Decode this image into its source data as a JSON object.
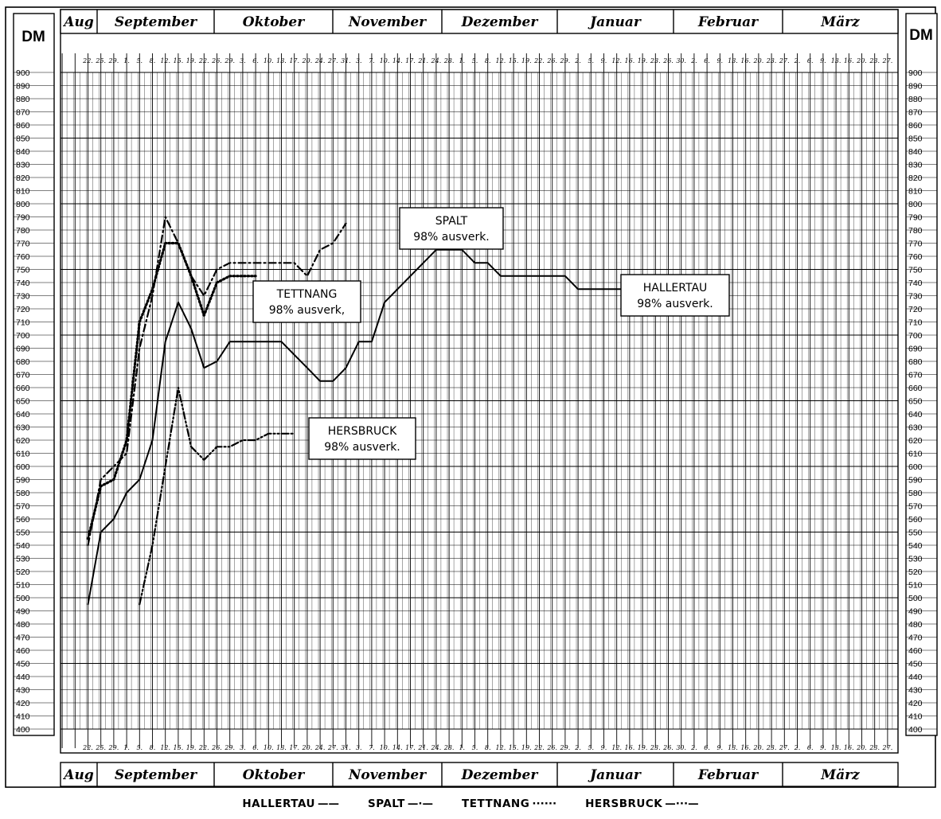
{
  "chart_data": {
    "type": "line",
    "y_unit_label": "DM",
    "ylim": [
      400,
      900
    ],
    "y_ticks": [
      900,
      890,
      880,
      870,
      860,
      850,
      840,
      830,
      820,
      810,
      800,
      790,
      780,
      770,
      760,
      750,
      740,
      730,
      720,
      710,
      700,
      690,
      680,
      670,
      660,
      650,
      640,
      630,
      620,
      610,
      600,
      590,
      580,
      570,
      560,
      550,
      540,
      530,
      520,
      510,
      500,
      490,
      480,
      470,
      460,
      450,
      440,
      430,
      420,
      410,
      400
    ],
    "months": [
      "Aug",
      "September",
      "Oktober",
      "November",
      "Dezember",
      "Januar",
      "Februar",
      "März"
    ],
    "date_ticks_top": [
      "22.",
      "25.",
      "29.",
      "1.",
      "5.",
      "8.",
      "12.",
      "15.",
      "19.",
      "22.",
      "26.",
      "29.",
      "3.",
      "6.",
      "10.",
      "13.",
      "17.",
      "20.",
      "24.",
      "27.",
      "31.",
      "3.",
      "7.",
      "10.",
      "14.",
      "17.",
      "21.",
      "24.",
      "28.",
      "1.",
      "5.",
      "8.",
      "12.",
      "15.",
      "19.",
      "22.",
      "26.",
      "29.",
      "2.",
      "5.",
      "9.",
      "12.",
      "16.",
      "19.",
      "23.",
      "26.",
      "30.",
      "2.",
      "6.",
      "9.",
      "13.",
      "16.",
      "20.",
      "23.",
      "27.",
      "2.",
      "6.",
      "9.",
      "13.",
      "16.",
      "20.",
      "23.",
      "27."
    ],
    "date_ticks_bottom": [
      "22.",
      "25.",
      "29.",
      "1.",
      "5.",
      "8.",
      "12.",
      "15.",
      "19.",
      "22.",
      "26.",
      "29.",
      "3.",
      "6.",
      "10.",
      "13.",
      "17.",
      "20.",
      "24.",
      "27.",
      "31.",
      "3.",
      "7.",
      "10.",
      "14.",
      "17.",
      "21.",
      "24.",
      "28.",
      "1.",
      "5.",
      "8.",
      "12.",
      "15.",
      "19.",
      "22.",
      "26.",
      "29.",
      "2.",
      "5.",
      "9.",
      "12.",
      "16.",
      "19.",
      "23.",
      "26.",
      "30.",
      "2.",
      "6.",
      "9.",
      "13.",
      "16.",
      "20.",
      "23.",
      "27.",
      "2.",
      "6.",
      "9.",
      "13.",
      "16.",
      "20.",
      "23.",
      "27."
    ],
    "x": [
      "22. Aug",
      "25. Aug",
      "29. Aug",
      "1. Sep",
      "5. Sep",
      "8. Sep",
      "12. Sep",
      "15. Sep",
      "19. Sep",
      "22. Sep",
      "26. Sep",
      "29. Sep",
      "3. Okt",
      "6. Okt",
      "10. Okt",
      "13. Okt",
      "17. Okt",
      "20. Okt",
      "24. Okt",
      "27. Okt",
      "31. Okt",
      "3. Nov",
      "7. Nov",
      "10. Nov",
      "14. Nov",
      "17. Nov",
      "21. Nov",
      "24. Nov",
      "28. Nov",
      "1. Dez",
      "5. Dez",
      "8. Dez",
      "12. Dez",
      "15. Dez",
      "19. Dez",
      "22. Dez",
      "26. Dez",
      "29. Dez",
      "2. Jan",
      "5. Jan",
      "9. Jan",
      "12. Jan",
      "16. Jan",
      "19. Jan",
      "23. Jan",
      "26. Jan",
      "30. Jan"
    ],
    "series": [
      {
        "name": "HALLERTAU",
        "style": "solid",
        "points": [
          [
            "22. Aug",
            495
          ],
          [
            "25. Aug",
            550
          ],
          [
            "29. Aug",
            560
          ],
          [
            "1. Sep",
            580
          ],
          [
            "5. Sep",
            590
          ],
          [
            "8. Sep",
            620
          ],
          [
            "12. Sep",
            695
          ],
          [
            "15. Sep",
            725
          ],
          [
            "19. Sep",
            705
          ],
          [
            "22. Sep",
            675
          ],
          [
            "26. Sep",
            680
          ],
          [
            "29. Sep",
            695
          ],
          [
            "3. Okt",
            695
          ],
          [
            "6. Okt",
            695
          ],
          [
            "10. Okt",
            695
          ],
          [
            "13. Okt",
            695
          ],
          [
            "17. Okt",
            685
          ],
          [
            "20. Okt",
            675
          ],
          [
            "24. Okt",
            665
          ],
          [
            "27. Okt",
            665
          ],
          [
            "31. Okt",
            675
          ],
          [
            "3. Nov",
            695
          ],
          [
            "7. Nov",
            695
          ],
          [
            "10. Nov",
            725
          ],
          [
            "14. Nov",
            735
          ],
          [
            "17. Nov",
            745
          ],
          [
            "21. Nov",
            755
          ],
          [
            "24. Nov",
            765
          ],
          [
            "28. Nov",
            765
          ],
          [
            "1. Dez",
            765
          ],
          [
            "5. Dez",
            755
          ],
          [
            "8. Dez",
            755
          ],
          [
            "12. Dez",
            745
          ],
          [
            "15. Dez",
            745
          ],
          [
            "19. Dez",
            745
          ],
          [
            "22. Dez",
            745
          ],
          [
            "26. Dez",
            745
          ],
          [
            "29. Dez",
            745
          ],
          [
            "2. Jan",
            735
          ],
          [
            "5. Jan",
            735
          ],
          [
            "9. Jan",
            735
          ],
          [
            "12. Jan",
            735
          ],
          [
            "16. Jan",
            735
          ],
          [
            "19. Jan",
            735
          ],
          [
            "23. Jan",
            735
          ],
          [
            "26. Jan",
            735
          ],
          [
            "30. Jan",
            735
          ]
        ]
      },
      {
        "name": "SPALT",
        "style": "dash-dot",
        "points": [
          [
            "22. Aug",
            540
          ],
          [
            "25. Aug",
            590
          ],
          [
            "29. Aug",
            600
          ],
          [
            "1. Sep",
            610
          ],
          [
            "5. Sep",
            690
          ],
          [
            "8. Sep",
            730
          ],
          [
            "12. Sep",
            790
          ],
          [
            "15. Sep",
            770
          ],
          [
            "19. Sep",
            745
          ],
          [
            "22. Sep",
            730
          ],
          [
            "26. Sep",
            750
          ],
          [
            "29. Sep",
            755
          ],
          [
            "3. Okt",
            755
          ],
          [
            "6. Okt",
            755
          ],
          [
            "10. Okt",
            755
          ],
          [
            "13. Okt",
            755
          ],
          [
            "17. Okt",
            755
          ],
          [
            "20. Okt",
            745
          ],
          [
            "24. Okt",
            765
          ],
          [
            "27. Okt",
            770
          ],
          [
            "31. Okt",
            785
          ]
        ]
      },
      {
        "name": "TETTNANG",
        "style": "dotted",
        "points": [
          [
            "22. Aug",
            545
          ],
          [
            "25. Aug",
            585
          ],
          [
            "29. Aug",
            590
          ],
          [
            "1. Sep",
            620
          ],
          [
            "5. Sep",
            710
          ],
          [
            "8. Sep",
            735
          ],
          [
            "12. Sep",
            770
          ],
          [
            "15. Sep",
            770
          ],
          [
            "19. Sep",
            745
          ],
          [
            "22. Sep",
            715
          ],
          [
            "26. Sep",
            740
          ],
          [
            "29. Sep",
            745
          ],
          [
            "3. Okt",
            745
          ],
          [
            "6. Okt",
            745
          ]
        ]
      },
      {
        "name": "HERSBRUCK",
        "style": "dash-dot-dot",
        "points": [
          [
            "5. Sep",
            495
          ],
          [
            "8. Sep",
            540
          ],
          [
            "12. Sep",
            600
          ],
          [
            "15. Sep",
            660
          ],
          [
            "19. Sep",
            615
          ],
          [
            "22. Sep",
            605
          ],
          [
            "26. Sep",
            615
          ],
          [
            "29. Sep",
            615
          ],
          [
            "3. Okt",
            620
          ],
          [
            "6. Okt",
            620
          ],
          [
            "10. Okt",
            625
          ],
          [
            "13. Okt",
            625
          ],
          [
            "17. Okt",
            625
          ]
        ]
      }
    ],
    "annotations": [
      {
        "series": "SPALT",
        "line1": "SPALT",
        "line2": "98% ausverk."
      },
      {
        "series": "TETTNANG",
        "line1": "TETTNANG",
        "line2": "98% ausverk,"
      },
      {
        "series": "HERSBRUCK",
        "line1": "HERSBRUCK",
        "line2": "98% ausverk."
      },
      {
        "series": "HALLERTAU",
        "line1": "HALLERTAU",
        "line2": "98% ausverk."
      }
    ],
    "legend": [
      {
        "label": "HALLERTAU",
        "marker": "——"
      },
      {
        "label": "SPALT",
        "marker": "—·—"
      },
      {
        "label": "TETTNANG",
        "marker": "······"
      },
      {
        "label": "HERSBRUCK",
        "marker": "—···—"
      }
    ],
    "grid": true,
    "legend_position": "bottom-center"
  }
}
